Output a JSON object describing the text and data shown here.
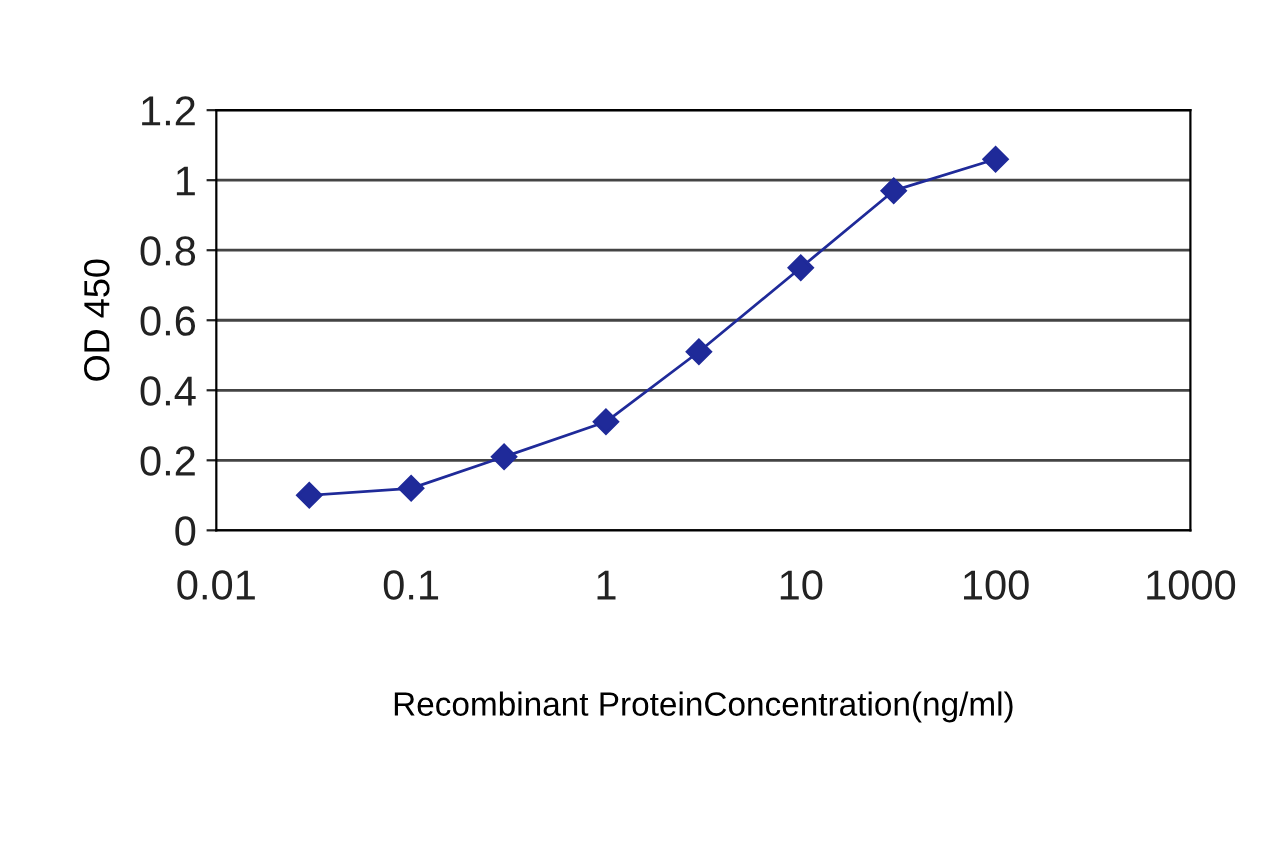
{
  "chart_data": {
    "type": "line",
    "xlabel": "Recombinant ProteinConcentration(ng/ml)",
    "ylabel": "OD 450",
    "x": [
      0.03,
      0.1,
      0.3,
      1,
      3,
      10,
      30,
      100
    ],
    "series": [
      {
        "color": "#1f2a99",
        "values": [
          0.1,
          0.12,
          0.21,
          0.31,
          0.51,
          0.75,
          0.97,
          1.06
        ]
      }
    ],
    "log": "x",
    "xlim": [
      0.01,
      1000
    ],
    "xticks": [
      0.01,
      0.1,
      1,
      10,
      100,
      1000
    ],
    "ylim": [
      0,
      1.2
    ],
    "yticks": [
      0,
      0.2,
      0.4,
      0.6,
      0.8,
      1,
      1.2
    ],
    "grid": "y",
    "marker": "diamond",
    "line_style": "solid",
    "legend": false
  }
}
